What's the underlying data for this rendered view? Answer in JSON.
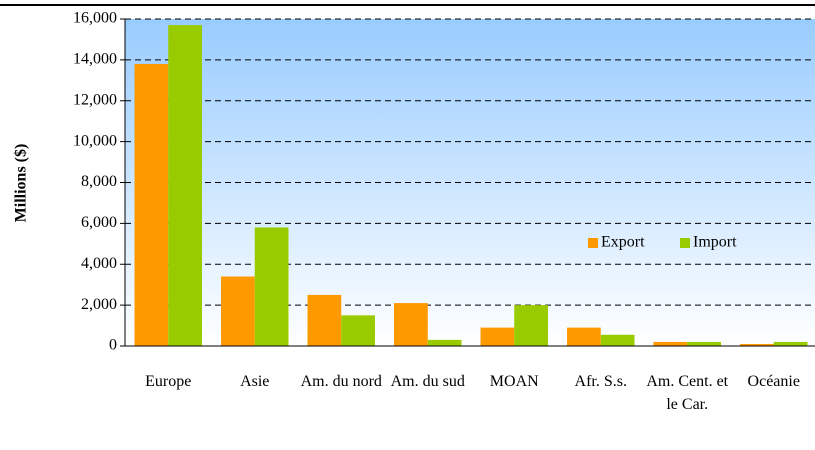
{
  "chart_data": {
    "type": "bar",
    "y_label": "Millions ($)",
    "categories": [
      "Europe",
      "Asie",
      "Am. du nord",
      "Am. du sud",
      "MOAN",
      "Afr. S.s.",
      "Am. Cent. et le Car.",
      "Océanie"
    ],
    "series": [
      {
        "name": "Export",
        "color": "#ff9900",
        "values": [
          13800,
          3400,
          2500,
          2100,
          900,
          900,
          200,
          100
        ]
      },
      {
        "name": "Import",
        "color": "#99cc00",
        "values": [
          15700,
          5800,
          1500,
          300,
          2000,
          550,
          200,
          200
        ]
      }
    ],
    "ylim": [
      0,
      16000
    ],
    "yticks": [
      0,
      {
        "value": 2000,
        "label": "2,000"
      },
      {
        "value": 4000,
        "label": "4,000"
      },
      {
        "value": 6000,
        "label": "6,000"
      },
      {
        "value": 8000,
        "label": "8,000"
      },
      {
        "value": 10000,
        "label": "10,000"
      },
      {
        "value": 12000,
        "label": "12,000"
      },
      {
        "value": 14000,
        "label": "14,000"
      },
      {
        "value": 16000,
        "label": "16,000"
      }
    ],
    "grid": true,
    "legend": "right"
  }
}
